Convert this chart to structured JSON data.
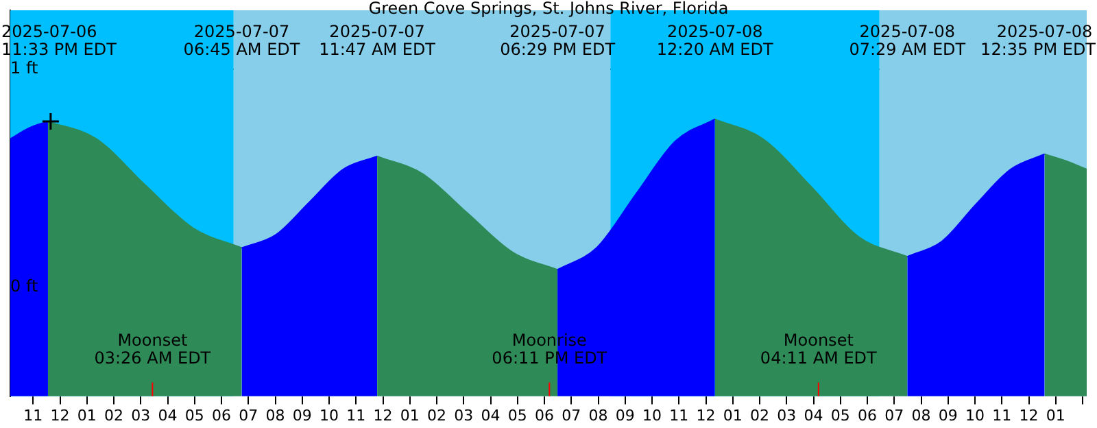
{
  "chart_data": {
    "type": "area",
    "title": "Green Cove Springs, St. Johns River, Florida",
    "x": [
      "2025-07-06T22:09",
      "2025-07-06T22:51",
      "2025-07-06T23:33",
      "2025-07-07T01:21",
      "2025-07-07T03:09",
      "2025-07-07T04:57",
      "2025-07-07T06:45",
      "2025-07-07T08:01",
      "2025-07-07T09:16",
      "2025-07-07T10:31",
      "2025-07-07T11:47",
      "2025-07-07T13:28",
      "2025-07-07T15:08",
      "2025-07-07T16:49",
      "2025-07-07T18:29",
      "2025-07-07T19:56",
      "2025-07-07T21:25",
      "2025-07-07T22:52",
      "2025-07-08T00:20",
      "2025-07-08T02:07",
      "2025-07-08T03:55",
      "2025-07-08T05:41",
      "2025-07-08T07:29",
      "2025-07-08T08:46",
      "2025-07-08T10:02",
      "2025-07-08T11:19",
      "2025-07-08T12:35",
      "2025-07-08T13:22",
      "2025-07-08T14:09"
    ],
    "series": [
      {
        "color": "#0000ff",
        "values": [
          0.68,
          0.73,
          0.76,
          null,
          null,
          null,
          0.18,
          0.24,
          0.39,
          0.54,
          0.6,
          null,
          null,
          null,
          0.08,
          0.18,
          0.43,
          0.67,
          0.77,
          null,
          null,
          null,
          0.14,
          0.21,
          0.38,
          0.54,
          0.61,
          null,
          null
        ]
      },
      {
        "color": "#2e8b57",
        "values": [
          null,
          null,
          0.76,
          0.68,
          0.47,
          0.27,
          0.18,
          null,
          null,
          null,
          0.6,
          0.52,
          0.34,
          0.16,
          0.08,
          null,
          null,
          null,
          0.77,
          0.68,
          0.46,
          0.23,
          0.14,
          null,
          null,
          null,
          0.61,
          0.58,
          0.54
        ]
      },
      {
        "type": "scatter",
        "color": "#000000",
        "marker": "cross",
        "x": [
          "2025-07-06T23:39"
        ],
        "values": [
          0.76
        ]
      }
    ],
    "marker": "none",
    "xlim": [
      "2025-07-06T22:09",
      "2025-07-08T14:09"
    ],
    "xticks": [
      {
        "value": "2025-07-06T23:00",
        "label": "11"
      },
      {
        "value": "2025-07-07T00:00",
        "label": "12"
      },
      {
        "value": "2025-07-07T01:00",
        "label": "01"
      },
      {
        "value": "2025-07-07T02:00",
        "label": "02"
      },
      {
        "value": "2025-07-07T03:00",
        "label": "03"
      },
      {
        "value": "2025-07-07T04:00",
        "label": "04"
      },
      {
        "value": "2025-07-07T05:00",
        "label": "05"
      },
      {
        "value": "2025-07-07T06:00",
        "label": "06"
      },
      {
        "value": "2025-07-07T07:00",
        "label": "07"
      },
      {
        "value": "2025-07-07T08:00",
        "label": "08"
      },
      {
        "value": "2025-07-07T09:00",
        "label": "09"
      },
      {
        "value": "2025-07-07T10:00",
        "label": "10"
      },
      {
        "value": "2025-07-07T11:00",
        "label": "11"
      },
      {
        "value": "2025-07-07T12:00",
        "label": "12"
      },
      {
        "value": "2025-07-07T13:00",
        "label": "01"
      },
      {
        "value": "2025-07-07T14:00",
        "label": "02"
      },
      {
        "value": "2025-07-07T15:00",
        "label": "03"
      },
      {
        "value": "2025-07-07T16:00",
        "label": "04"
      },
      {
        "value": "2025-07-07T17:00",
        "label": "05"
      },
      {
        "value": "2025-07-07T18:00",
        "label": "06"
      },
      {
        "value": "2025-07-07T19:00",
        "label": "07"
      },
      {
        "value": "2025-07-07T20:00",
        "label": "08"
      },
      {
        "value": "2025-07-07T21:00",
        "label": "09"
      },
      {
        "value": "2025-07-07T22:00",
        "label": "10"
      },
      {
        "value": "2025-07-07T23:00",
        "label": "11"
      },
      {
        "value": "2025-07-08T00:00",
        "label": "12"
      },
      {
        "value": "2025-07-08T01:00",
        "label": "01"
      },
      {
        "value": "2025-07-08T02:00",
        "label": "02"
      },
      {
        "value": "2025-07-08T03:00",
        "label": "03"
      },
      {
        "value": "2025-07-08T04:00",
        "label": "04"
      },
      {
        "value": "2025-07-08T05:00",
        "label": "05"
      },
      {
        "value": "2025-07-08T06:00",
        "label": "06"
      },
      {
        "value": "2025-07-08T07:00",
        "label": "07"
      },
      {
        "value": "2025-07-08T08:00",
        "label": "08"
      },
      {
        "value": "2025-07-08T09:00",
        "label": "09"
      },
      {
        "value": "2025-07-08T10:00",
        "label": "10"
      },
      {
        "value": "2025-07-08T11:00",
        "label": "11"
      },
      {
        "value": "2025-07-08T12:00",
        "label": "12"
      },
      {
        "value": "2025-07-08T13:00",
        "label": "01"
      },
      {
        "value": "2025-07-08T14:00",
        "label": null
      }
    ],
    "ylim": [
      -0.5,
      1.27
    ],
    "yticks": [
      {
        "value": 0,
        "label": "0 ft"
      },
      {
        "value": 1,
        "label": "1 ft"
      }
    ],
    "grid": "y",
    "bands": [
      {
        "axis": "x",
        "from": "2025-07-06T22:09",
        "to": "2025-07-07T06:27",
        "color": "#00bfff"
      },
      {
        "axis": "x",
        "from": "2025-07-07T06:27",
        "to": "2025-07-07T20:27",
        "color": "#87ceeb"
      },
      {
        "axis": "x",
        "from": "2025-07-07T20:27",
        "to": "2025-07-08T06:27",
        "color": "#00bfff"
      },
      {
        "axis": "x",
        "from": "2025-07-08T06:27",
        "to": "2025-07-08T14:09",
        "color": "#87ceeb"
      }
    ],
    "ref_lines": [
      {
        "axis": "x",
        "value": "2025-07-07T03:26",
        "label": "Moonset\n03:26 AM EDT",
        "color": "#ff0000"
      },
      {
        "axis": "x",
        "value": "2025-07-07T18:11",
        "label": "Moonrise\n06:11 PM EDT",
        "color": "#ff0000"
      },
      {
        "axis": "x",
        "value": "2025-07-08T04:11",
        "label": "Moonset\n04:11 AM EDT",
        "color": "#ff0000"
      }
    ],
    "annotations": [
      "2025-07-06\n11:33 PM EDT",
      "2025-07-07\n06:45 AM EDT",
      "2025-07-07\n11:47 AM EDT",
      "2025-07-07\n06:29 PM EDT",
      "2025-07-08\n12:20 AM EDT",
      "2025-07-08\n07:29 AM EDT",
      "2025-07-08\n12:35 PM EDT"
    ]
  }
}
